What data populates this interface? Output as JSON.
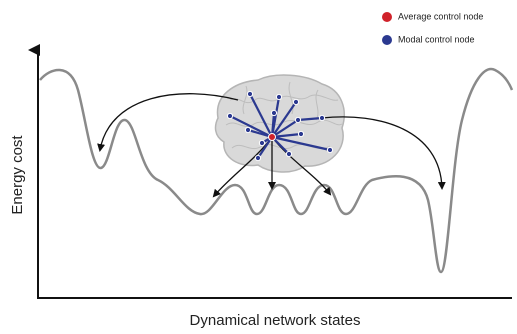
{
  "legend": [
    {
      "label": "Average control node"
    },
    {
      "label": "Modal control node"
    }
  ],
  "axes": {
    "y_label": "Energy cost",
    "x_label": "Dynamical network states"
  }
}
